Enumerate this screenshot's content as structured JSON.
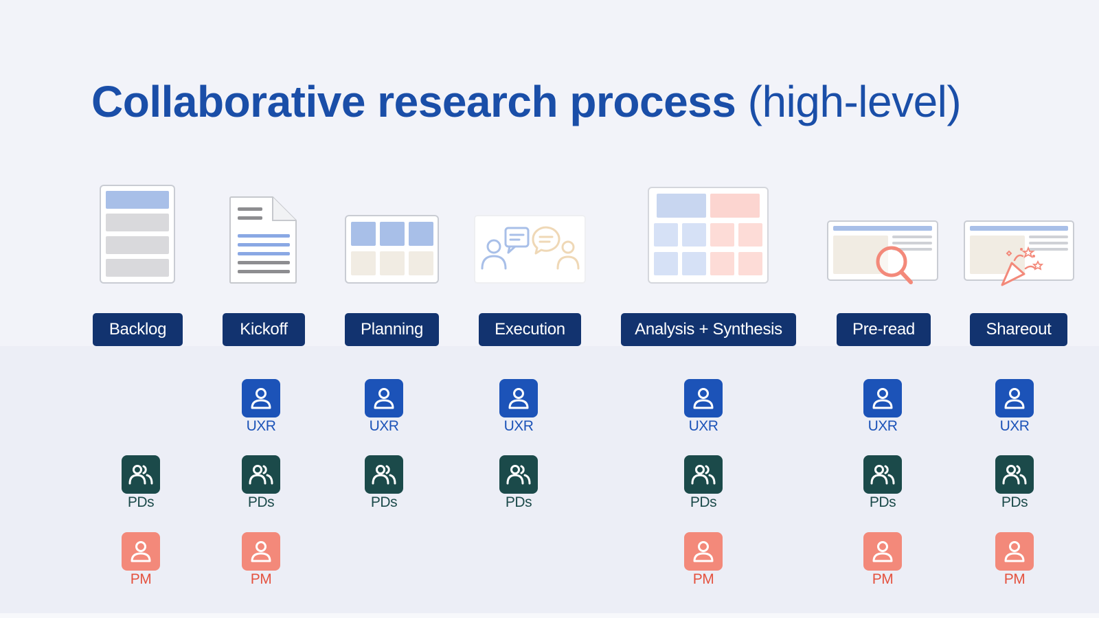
{
  "title": {
    "bold": "Collaborative research process",
    "light": "(high-level)"
  },
  "stages": [
    {
      "label": "Backlog",
      "illustration": "list-document-icon"
    },
    {
      "label": "Kickoff",
      "illustration": "document-page-icon"
    },
    {
      "label": "Planning",
      "illustration": "planning-board-icon"
    },
    {
      "label": "Execution",
      "illustration": "conversation-icon"
    },
    {
      "label": "Analysis + Synthesis",
      "illustration": "affinity-grid-icon"
    },
    {
      "label": "Pre-read",
      "illustration": "magnifier-report-icon"
    },
    {
      "label": "Shareout",
      "illustration": "celebration-report-icon"
    }
  ],
  "roles": {
    "uxr": {
      "label": "UXR",
      "icon": "person-icon",
      "color": "#1c53b8"
    },
    "pds": {
      "label": "PDs",
      "icon": "people-group-icon",
      "color": "#1b4a4a"
    },
    "pm": {
      "label": "PM",
      "icon": "person-icon",
      "color": "#f3897a"
    }
  },
  "participation": {
    "Backlog": [
      "PDs",
      "PM"
    ],
    "Kickoff": [
      "UXR",
      "PDs",
      "PM"
    ],
    "Planning": [
      "UXR",
      "PDs"
    ],
    "Execution": [
      "UXR",
      "PDs"
    ],
    "Analysis + Synthesis": [
      "UXR",
      "PDs",
      "PM"
    ],
    "Pre-read": [
      "UXR",
      "PDs",
      "PM"
    ],
    "Shareout": [
      "UXR",
      "PDs",
      "PM"
    ]
  }
}
